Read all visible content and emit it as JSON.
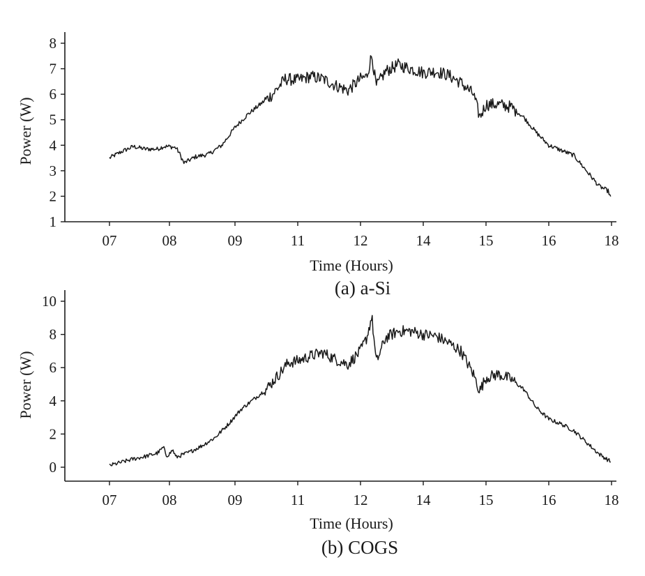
{
  "chart_data": [
    {
      "type": "line",
      "caption": "(a) a-Si",
      "xlabel": "Time (Hours)",
      "ylabel": "Power (W)",
      "x_ticks": [
        "07",
        "08",
        "09",
        "11",
        "12",
        "14",
        "15",
        "16",
        "18"
      ],
      "y_ticks": [
        "1",
        "2",
        "3",
        "4",
        "5",
        "6",
        "7",
        "8"
      ],
      "ylim": [
        1,
        8
      ],
      "grid": false,
      "series": [
        {
          "color": "#1a1a1a",
          "points": [
            [
              0.0,
              3.5
            ],
            [
              0.2,
              3.75
            ],
            [
              0.4,
              3.95
            ],
            [
              0.6,
              3.85
            ],
            [
              0.8,
              3.85
            ],
            [
              0.9,
              3.95
            ],
            [
              1.0,
              3.95
            ],
            [
              1.1,
              3.9
            ],
            [
              1.15,
              3.7
            ],
            [
              1.22,
              3.3
            ],
            [
              1.4,
              3.55
            ],
            [
              1.6,
              3.65
            ],
            [
              1.8,
              4.0
            ],
            [
              2.0,
              4.7
            ],
            [
              2.2,
              5.2
            ],
            [
              2.4,
              5.6
            ],
            [
              2.6,
              6.0
            ],
            [
              2.8,
              6.6
            ],
            [
              3.0,
              6.55
            ],
            [
              3.2,
              6.7
            ],
            [
              3.4,
              6.6
            ],
            [
              3.6,
              6.35
            ],
            [
              3.8,
              6.15
            ],
            [
              4.0,
              6.6
            ],
            [
              4.1,
              6.7
            ],
            [
              4.18,
              7.55
            ],
            [
              4.25,
              6.3
            ],
            [
              4.4,
              6.9
            ],
            [
              4.6,
              7.15
            ],
            [
              4.8,
              7.0
            ],
            [
              5.0,
              6.85
            ],
            [
              5.2,
              6.9
            ],
            [
              5.4,
              6.75
            ],
            [
              5.6,
              6.45
            ],
            [
              5.8,
              6.0
            ],
            [
              5.9,
              5.1
            ],
            [
              6.0,
              5.6
            ],
            [
              6.2,
              5.6
            ],
            [
              6.4,
              5.5
            ],
            [
              6.6,
              5.1
            ],
            [
              6.8,
              4.5
            ],
            [
              7.0,
              4.0
            ],
            [
              7.2,
              3.8
            ],
            [
              7.4,
              3.6
            ],
            [
              7.6,
              3.0
            ],
            [
              7.8,
              2.4
            ],
            [
              7.95,
              2.2
            ],
            [
              8.0,
              1.85
            ],
            [
              8.05,
              1.85
            ]
          ]
        }
      ]
    },
    {
      "type": "line",
      "caption": "(b) COGS",
      "xlabel": "Time (Hours)",
      "ylabel": "Power (W)",
      "x_ticks": [
        "07",
        "08",
        "09",
        "11",
        "12",
        "14",
        "15",
        "16",
        "18"
      ],
      "y_ticks": [
        "0",
        "2",
        "4",
        "6",
        "8",
        "10"
      ],
      "ylim": [
        0,
        10
      ],
      "grid": false,
      "series": [
        {
          "color": "#1a1a1a",
          "points": [
            [
              0.0,
              0.1
            ],
            [
              0.2,
              0.3
            ],
            [
              0.4,
              0.5
            ],
            [
              0.6,
              0.65
            ],
            [
              0.8,
              0.85
            ],
            [
              0.9,
              1.2
            ],
            [
              0.95,
              0.7
            ],
            [
              1.0,
              0.8
            ],
            [
              1.05,
              1.05
            ],
            [
              1.1,
              0.6
            ],
            [
              1.3,
              0.9
            ],
            [
              1.5,
              1.3
            ],
            [
              1.7,
              1.8
            ],
            [
              1.9,
              2.6
            ],
            [
              2.1,
              3.5
            ],
            [
              2.3,
              4.1
            ],
            [
              2.5,
              4.7
            ],
            [
              2.7,
              5.6
            ],
            [
              2.85,
              6.3
            ],
            [
              3.0,
              6.4
            ],
            [
              3.2,
              6.7
            ],
            [
              3.4,
              6.9
            ],
            [
              3.6,
              6.5
            ],
            [
              3.8,
              6.2
            ],
            [
              4.0,
              7.0
            ],
            [
              4.1,
              7.8
            ],
            [
              4.18,
              9.1
            ],
            [
              4.25,
              6.3
            ],
            [
              4.4,
              7.8
            ],
            [
              4.6,
              8.2
            ],
            [
              4.8,
              8.2
            ],
            [
              5.0,
              8.0
            ],
            [
              5.2,
              7.9
            ],
            [
              5.4,
              7.5
            ],
            [
              5.6,
              7.0
            ],
            [
              5.8,
              5.6
            ],
            [
              5.9,
              4.6
            ],
            [
              6.0,
              5.4
            ],
            [
              6.2,
              5.6
            ],
            [
              6.4,
              5.3
            ],
            [
              6.6,
              4.7
            ],
            [
              6.8,
              3.6
            ],
            [
              7.0,
              2.9
            ],
            [
              7.2,
              2.6
            ],
            [
              7.4,
              2.2
            ],
            [
              7.6,
              1.5
            ],
            [
              7.8,
              0.8
            ],
            [
              8.0,
              0.3
            ],
            [
              8.05,
              0.1
            ]
          ]
        }
      ]
    }
  ]
}
